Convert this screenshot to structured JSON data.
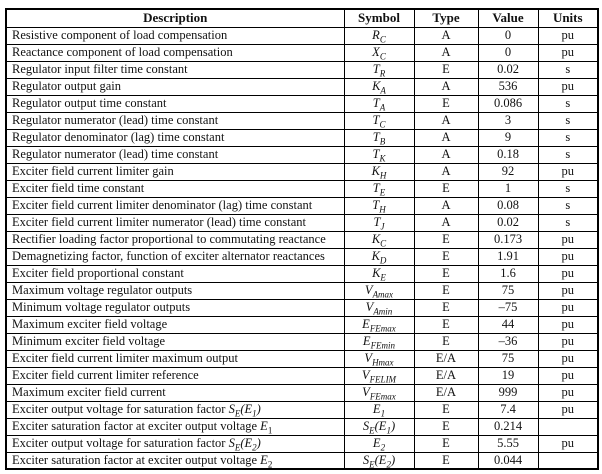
{
  "table": {
    "headers": [
      "Description",
      "Symbol",
      "Type",
      "Value",
      "Units"
    ],
    "rows": [
      {
        "description": [
          {
            "t": "Resistive component of load compensation"
          }
        ],
        "symbol": [
          {
            "t": "R",
            "i": true
          },
          {
            "t": "C",
            "i": true,
            "s": true
          }
        ],
        "type": "A",
        "value": "0",
        "units": "pu"
      },
      {
        "description": [
          {
            "t": "Reactance component of load compensation"
          }
        ],
        "symbol": [
          {
            "t": "X",
            "i": true
          },
          {
            "t": "C",
            "i": true,
            "s": true
          }
        ],
        "type": "A",
        "value": "0",
        "units": "pu"
      },
      {
        "description": [
          {
            "t": "Regulator input filter time constant"
          }
        ],
        "symbol": [
          {
            "t": "T",
            "i": true
          },
          {
            "t": "R",
            "i": true,
            "s": true
          }
        ],
        "type": "E",
        "value": "0.02",
        "units": "s"
      },
      {
        "description": [
          {
            "t": "Regulator output gain"
          }
        ],
        "symbol": [
          {
            "t": "K",
            "i": true
          },
          {
            "t": "A",
            "i": true,
            "s": true
          }
        ],
        "type": "A",
        "value": "536",
        "units": "pu"
      },
      {
        "description": [
          {
            "t": "Regulator output time constant"
          }
        ],
        "symbol": [
          {
            "t": "T",
            "i": true
          },
          {
            "t": "A",
            "i": true,
            "s": true
          }
        ],
        "type": "E",
        "value": "0.086",
        "units": "s"
      },
      {
        "description": [
          {
            "t": "Regulator numerator (lead) time constant"
          }
        ],
        "symbol": [
          {
            "t": "T",
            "i": true
          },
          {
            "t": "C",
            "i": true,
            "s": true
          }
        ],
        "type": "A",
        "value": "3",
        "units": "s"
      },
      {
        "description": [
          {
            "t": "Regulator denominator (lag) time constant"
          }
        ],
        "symbol": [
          {
            "t": "T",
            "i": true
          },
          {
            "t": "B",
            "i": true,
            "s": true
          }
        ],
        "type": "A",
        "value": "9",
        "units": "s"
      },
      {
        "description": [
          {
            "t": "Regulator numerator (lead) time constant"
          }
        ],
        "symbol": [
          {
            "t": "T",
            "i": true
          },
          {
            "t": "K",
            "i": true,
            "s": true
          }
        ],
        "type": "A",
        "value": "0.18",
        "units": "s"
      },
      {
        "description": [
          {
            "t": "Exciter field current limiter gain"
          }
        ],
        "symbol": [
          {
            "t": "K",
            "i": true
          },
          {
            "t": "H",
            "i": true,
            "s": true
          }
        ],
        "type": "A",
        "value": "92",
        "units": "pu"
      },
      {
        "description": [
          {
            "t": "Exciter field time constant"
          }
        ],
        "symbol": [
          {
            "t": "T",
            "i": true
          },
          {
            "t": "E",
            "i": true,
            "s": true
          }
        ],
        "type": "E",
        "value": "1",
        "units": "s"
      },
      {
        "description": [
          {
            "t": "Exciter field current limiter denominator (lag) time constant"
          }
        ],
        "symbol": [
          {
            "t": "T",
            "i": true
          },
          {
            "t": "H",
            "i": true,
            "s": true
          }
        ],
        "type": "A",
        "value": "0.08",
        "units": "s"
      },
      {
        "description": [
          {
            "t": "Exciter field current limiter numerator (lead) time constant"
          }
        ],
        "symbol": [
          {
            "t": "T",
            "i": true
          },
          {
            "t": "J",
            "i": true,
            "s": true
          }
        ],
        "type": "A",
        "value": "0.02",
        "units": "s"
      },
      {
        "description": [
          {
            "t": "Rectifier loading factor proportional to commutating reactance"
          }
        ],
        "symbol": [
          {
            "t": "K",
            "i": true
          },
          {
            "t": "C",
            "i": true,
            "s": true
          }
        ],
        "type": "E",
        "value": "0.173",
        "units": "pu"
      },
      {
        "description": [
          {
            "t": "Demagnetizing factor, function of exciter alternator reactances"
          }
        ],
        "symbol": [
          {
            "t": "K",
            "i": true
          },
          {
            "t": "D",
            "i": true,
            "s": true
          }
        ],
        "type": "E",
        "value": "1.91",
        "units": "pu"
      },
      {
        "description": [
          {
            "t": "Exciter field proportional constant"
          }
        ],
        "symbol": [
          {
            "t": "K",
            "i": true
          },
          {
            "t": "E",
            "i": true,
            "s": true
          }
        ],
        "type": "E",
        "value": "1.6",
        "units": "pu"
      },
      {
        "description": [
          {
            "t": "Maximum voltage regulator outputs"
          }
        ],
        "symbol": [
          {
            "t": "V",
            "i": true
          },
          {
            "t": "Amax",
            "i": true,
            "s": true
          }
        ],
        "type": "E",
        "value": "75",
        "units": "pu"
      },
      {
        "description": [
          {
            "t": "Minimum voltage regulator outputs"
          }
        ],
        "symbol": [
          {
            "t": "V",
            "i": true
          },
          {
            "t": "Amin",
            "i": true,
            "s": true
          }
        ],
        "type": "E",
        "value": "–75",
        "units": "pu"
      },
      {
        "description": [
          {
            "t": "Maximum exciter field voltage"
          }
        ],
        "symbol": [
          {
            "t": "E",
            "i": true
          },
          {
            "t": "FEmax",
            "i": true,
            "s": true
          }
        ],
        "type": "E",
        "value": "44",
        "units": "pu"
      },
      {
        "description": [
          {
            "t": "Minimum exciter field voltage"
          }
        ],
        "symbol": [
          {
            "t": "E",
            "i": true
          },
          {
            "t": "FEmin",
            "i": true,
            "s": true
          }
        ],
        "type": "E",
        "value": "–36",
        "units": "pu"
      },
      {
        "description": [
          {
            "t": "Exciter field current limiter maximum output"
          }
        ],
        "symbol": [
          {
            "t": "V",
            "i": true
          },
          {
            "t": "Hmax",
            "i": true,
            "s": true
          }
        ],
        "type": "E/A",
        "value": "75",
        "units": "pu"
      },
      {
        "description": [
          {
            "t": "Exciter field current limiter reference"
          }
        ],
        "symbol": [
          {
            "t": "V",
            "i": true
          },
          {
            "t": "FELIM",
            "i": true,
            "s": true
          }
        ],
        "type": "E/A",
        "value": "19",
        "units": "pu"
      },
      {
        "description": [
          {
            "t": "Maximum exciter field current"
          }
        ],
        "symbol": [
          {
            "t": "V",
            "i": true
          },
          {
            "t": "FEmax",
            "i": true,
            "s": true
          }
        ],
        "type": "E/A",
        "value": "999",
        "units": "pu"
      },
      {
        "description": [
          {
            "t": "Exciter output voltage for saturation factor "
          },
          {
            "t": "S",
            "i": true
          },
          {
            "t": "E",
            "i": true,
            "s": true
          },
          {
            "t": "(E",
            "i": true
          },
          {
            "t": "1",
            "i": true,
            "s": true
          },
          {
            "t": ")",
            "i": true
          }
        ],
        "symbol": [
          {
            "t": "E",
            "i": true
          },
          {
            "t": "1",
            "i": true,
            "s": true
          }
        ],
        "type": "E",
        "value": "7.4",
        "units": "pu"
      },
      {
        "description": [
          {
            "t": "Exciter saturation factor at exciter output voltage "
          },
          {
            "t": "E",
            "i": true
          },
          {
            "t": "1",
            "s": true
          }
        ],
        "symbol": [
          {
            "t": "S",
            "i": true
          },
          {
            "t": "E",
            "i": true,
            "s": true
          },
          {
            "t": "(E",
            "i": true
          },
          {
            "t": "1",
            "i": true,
            "s": true
          },
          {
            "t": ")",
            "i": true
          }
        ],
        "type": "E",
        "value": "0.214",
        "units": ""
      },
      {
        "description": [
          {
            "t": "Exciter output voltage for saturation factor "
          },
          {
            "t": "S",
            "i": true
          },
          {
            "t": "E",
            "i": true,
            "s": true
          },
          {
            "t": "(E",
            "i": true
          },
          {
            "t": "2",
            "i": true,
            "s": true
          },
          {
            "t": ")",
            "i": true
          }
        ],
        "symbol": [
          {
            "t": "E",
            "i": true
          },
          {
            "t": "2",
            "i": true,
            "s": true
          }
        ],
        "type": "E",
        "value": "5.55",
        "units": "pu"
      },
      {
        "description": [
          {
            "t": "Exciter saturation factor at exciter output voltage "
          },
          {
            "t": "E",
            "i": true
          },
          {
            "t": "2",
            "s": true
          }
        ],
        "symbol": [
          {
            "t": "S",
            "i": true
          },
          {
            "t": "E",
            "i": true,
            "s": true
          },
          {
            "t": "(E",
            "i": true
          },
          {
            "t": "2",
            "i": true,
            "s": true
          },
          {
            "t": ")",
            "i": true
          }
        ],
        "type": "E",
        "value": "0.044",
        "units": ""
      }
    ]
  }
}
